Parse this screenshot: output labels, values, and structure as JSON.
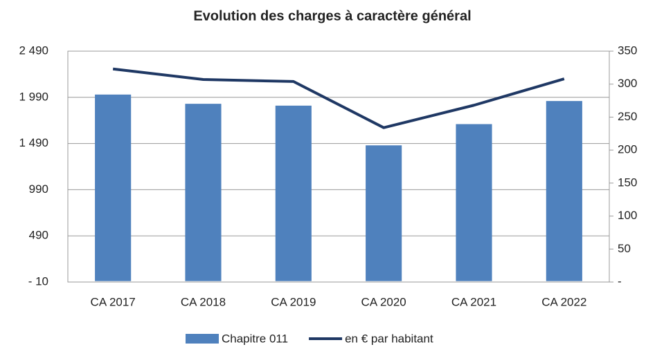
{
  "chart_data": {
    "type": "bar-line",
    "title": "Evolution des charges à caractère général",
    "categories": [
      "CA 2017",
      "CA 2018",
      "CA 2019",
      "CA 2020",
      "CA 2021",
      "CA 2022"
    ],
    "series": [
      {
        "name": "Chapitre 011",
        "type": "bar",
        "color": "#4f81bd",
        "axis": "y",
        "values": [
          2020,
          1920,
          1900,
          1470,
          1700,
          1950
        ]
      },
      {
        "name": "en € par habitant",
        "type": "line",
        "color": "#1f3864",
        "axis": "y2",
        "values": [
          323,
          307,
          304,
          234,
          268,
          308
        ]
      }
    ],
    "ylim": [
      -10,
      2490
    ],
    "yticks": [
      {
        "value": -10,
        "label": "- 10"
      },
      490,
      990,
      {
        "value": 1490,
        "label": "1 490"
      },
      {
        "value": 1990,
        "label": "1 990"
      },
      {
        "value": 2490,
        "label": "2 490"
      }
    ],
    "y2lim": [
      0,
      350
    ],
    "y2ticks": [
      {
        "value": 0,
        "label": "-"
      },
      50,
      100,
      150,
      200,
      250,
      300,
      350
    ],
    "grid": true,
    "legend": "bottom"
  }
}
